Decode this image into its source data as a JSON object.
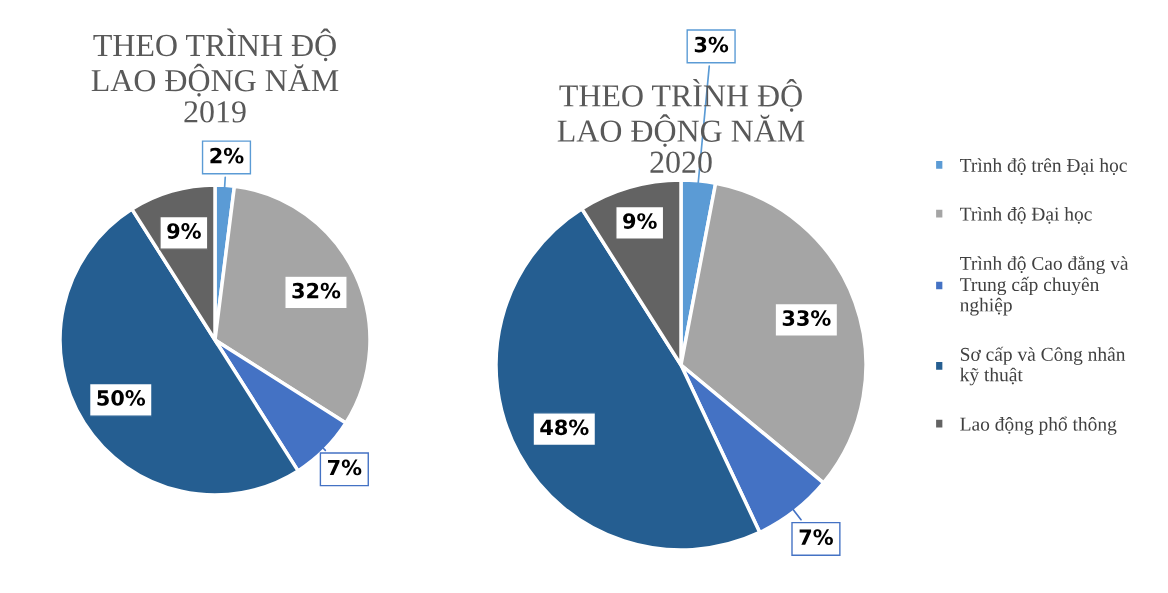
{
  "chart_data": [
    {
      "type": "pie",
      "title": "THEO TRÌNH ĐỘ\nLAO ĐỘNG NĂM\n2019",
      "categories": [
        "Trình độ trên Đại học",
        "Trình độ Đại học",
        "Trình độ Cao đẳng và\nTrung cấp chuyên\nnghiệp",
        "Sơ cấp và Công nhân\nkỹ thuật",
        "Lao động phổ thông"
      ],
      "values": [
        2,
        32,
        7,
        50,
        9
      ],
      "colors": [
        "#5b9bd5",
        "#a5a5a5",
        "#4472c4",
        "#255e91",
        "#636363"
      ],
      "value_labels": [
        "2%",
        "32%",
        "7%",
        "50%",
        "9%"
      ],
      "legend": "right"
    },
    {
      "type": "pie",
      "title": "THEO TRÌNH ĐỘ\nLAO ĐỘNG NĂM\n2020",
      "categories": [
        null,
        null,
        null,
        null,
        null
      ],
      "values": [
        3,
        33,
        7,
        48,
        9
      ],
      "colors": [
        "#5b9bd5",
        "#a5a5a5",
        "#4472c4",
        "#255e91",
        "#636363"
      ],
      "value_labels": [
        "3%",
        "33%",
        "7%",
        "48%",
        "9%"
      ],
      "legend": false
    }
  ]
}
